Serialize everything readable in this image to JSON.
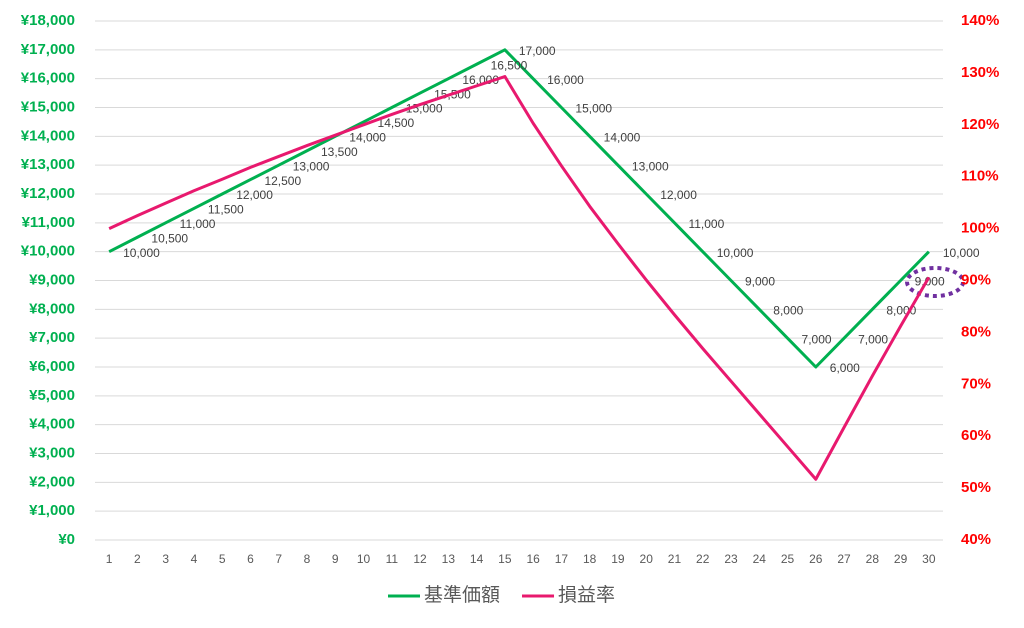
{
  "chart_data": {
    "type": "line",
    "categories": [
      "1",
      "2",
      "3",
      "4",
      "5",
      "6",
      "7",
      "8",
      "9",
      "10",
      "11",
      "12",
      "13",
      "14",
      "15",
      "16",
      "17",
      "18",
      "19",
      "20",
      "21",
      "22",
      "23",
      "24",
      "25",
      "26",
      "27",
      "28",
      "29",
      "30"
    ],
    "series": [
      {
        "name": "基準価額",
        "color": "#00b050",
        "values": [
          10000,
          10500,
          11000,
          11500,
          12000,
          12500,
          13000,
          13500,
          14000,
          14500,
          15000,
          15500,
          16000,
          16500,
          17000,
          16000,
          15000,
          14000,
          13000,
          12000,
          11000,
          10000,
          9000,
          8000,
          7000,
          6000,
          7000,
          8000,
          9000,
          10000
        ],
        "value_labels": [
          "10,000",
          "10,500",
          "11,000",
          "11,500",
          "12,000",
          "12,500",
          "13,000",
          "13,500",
          "14,000",
          "14,500",
          "15,000",
          "15,500",
          "16,000",
          "16,500",
          "17,000",
          "16,000",
          "15,000",
          "14,000",
          "13,000",
          "12,000",
          "11,000",
          "10,000",
          "9,000",
          "8,000",
          "7,000",
          "6,000",
          "7,000",
          "8,000",
          "9,000",
          "10,000"
        ]
      },
      {
        "name": "損益率",
        "color": "#e8196e",
        "axis": "y2",
        "values": [
          100,
          102.5,
          104.9,
          107.3,
          109.5,
          111.8,
          113.9,
          116.0,
          118.0,
          120.0,
          122.0,
          123.9,
          125.7,
          127.5,
          129.3,
          120.3,
          112.1,
          104.3,
          97.1,
          90.1,
          83.4,
          76.9,
          70.6,
          64.3,
          58.0,
          51.7,
          61.7,
          71.6,
          81.2,
          90.6
        ]
      }
    ],
    "ylim": [
      0,
      18000
    ],
    "yticks": [
      {
        "value": 0,
        "label": "¥0"
      },
      {
        "value": 1000,
        "label": "¥1,000"
      },
      {
        "value": 2000,
        "label": "¥2,000"
      },
      {
        "value": 3000,
        "label": "¥3,000"
      },
      {
        "value": 4000,
        "label": "¥4,000"
      },
      {
        "value": 5000,
        "label": "¥5,000"
      },
      {
        "value": 6000,
        "label": "¥6,000"
      },
      {
        "value": 7000,
        "label": "¥7,000"
      },
      {
        "value": 8000,
        "label": "¥8,000"
      },
      {
        "value": 9000,
        "label": "¥9,000"
      },
      {
        "value": 10000,
        "label": "¥10,000"
      },
      {
        "value": 11000,
        "label": "¥11,000"
      },
      {
        "value": 12000,
        "label": "¥12,000"
      },
      {
        "value": 13000,
        "label": "¥13,000"
      },
      {
        "value": 14000,
        "label": "¥14,000"
      },
      {
        "value": 15000,
        "label": "¥15,000"
      },
      {
        "value": 16000,
        "label": "¥16,000"
      },
      {
        "value": 17000,
        "label": "¥17,000"
      },
      {
        "value": 18000,
        "label": "¥18,000"
      }
    ],
    "y2lim": [
      40,
      140
    ],
    "y2ticks": [
      {
        "value": 40,
        "label": "40%"
      },
      {
        "value": 50,
        "label": "50%"
      },
      {
        "value": 60,
        "label": "60%"
      },
      {
        "value": 70,
        "label": "70%"
      },
      {
        "value": 80,
        "label": "80%"
      },
      {
        "value": 90,
        "label": "90%"
      },
      {
        "value": 100,
        "label": "100%"
      },
      {
        "value": 110,
        "label": "110%"
      },
      {
        "value": 120,
        "label": "120%"
      },
      {
        "value": 130,
        "label": "130%"
      },
      {
        "value": 140,
        "label": "140%"
      }
    ],
    "y_color": "#00b050",
    "y2_color": "#ff0000",
    "grid": true,
    "legend": "bottom"
  }
}
